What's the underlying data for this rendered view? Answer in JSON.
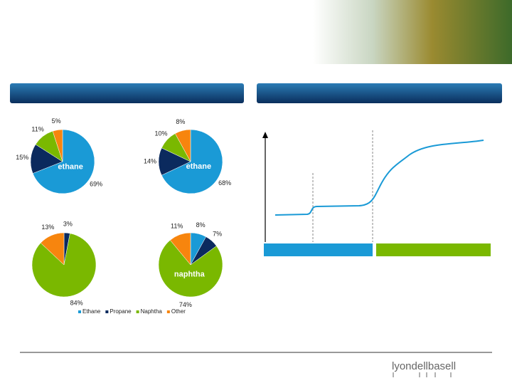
{
  "legend": [
    {
      "name": "Ethane",
      "color": "#1a9ad6"
    },
    {
      "name": "Propane",
      "color": "#0b2a5e"
    },
    {
      "name": "Naphtha",
      "color": "#7ab800"
    },
    {
      "name": "Other",
      "color": "#f7850e"
    }
  ],
  "chart_data": [
    {
      "type": "pie",
      "values": [
        69,
        15,
        11,
        5
      ],
      "value_labels": [
        "69%",
        "15%",
        "11%",
        "5%"
      ],
      "center_label": "ethane",
      "center_index": 0
    },
    {
      "type": "pie",
      "values": [
        68,
        14,
        10,
        8
      ],
      "value_labels": [
        "68%",
        "14%",
        "10%",
        "8%"
      ],
      "center_label": "ethane",
      "center_index": 0
    },
    {
      "type": "pie",
      "values": [
        null,
        3,
        84,
        13
      ],
      "value_labels": [
        null,
        "3%",
        "84%",
        "13%"
      ]
    },
    {
      "type": "pie",
      "values": [
        8,
        7,
        74,
        11
      ],
      "value_labels": [
        "8%",
        "7%",
        "74%",
        "11%"
      ],
      "center_label": "naphtha",
      "center_index": 2
    }
  ],
  "logo": "lyondellbasell"
}
